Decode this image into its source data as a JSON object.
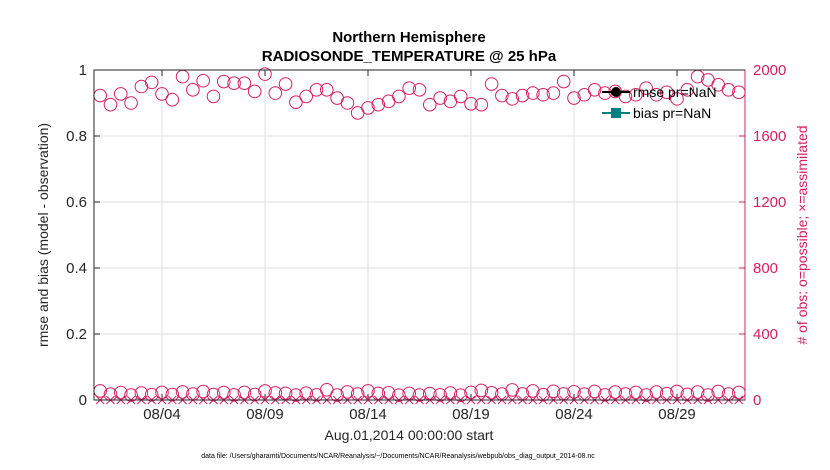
{
  "chart_data": {
    "type": "scatter",
    "title": "Northern Hemisphere",
    "subtitle": "RADIOSONDE_TEMPERATURE @ 25 hPa",
    "xlabel": "Aug.01,2014 00:00:00 start",
    "ylabel_left": "rmse and bias (model - observation)",
    "ylabel_right": "# of obs: o=possible; ×=assimilated",
    "x_ticks": [
      {
        "label": "08/04",
        "day": 4
      },
      {
        "label": "08/09",
        "day": 9
      },
      {
        "label": "08/14",
        "day": 14
      },
      {
        "label": "08/19",
        "day": 19
      },
      {
        "label": "08/24",
        "day": 24
      },
      {
        "label": "08/29",
        "day": 29
      }
    ],
    "xlim": [
      0.7,
      32.3
    ],
    "y_left": {
      "lim": [
        0,
        1
      ],
      "ticks": [
        "0",
        "0.2",
        "0.4",
        "0.6",
        "0.8",
        "1"
      ]
    },
    "y_right": {
      "lim": [
        0,
        2000
      ],
      "ticks": [
        "0",
        "400",
        "800",
        "1200",
        "1600",
        "2000"
      ]
    },
    "legend": [
      {
        "name": "rmse pr=NaN",
        "color": "#000000",
        "marker": "circle"
      },
      {
        "name": "bias pr=NaN",
        "color": "#00807f",
        "marker": "square"
      }
    ],
    "series": [
      {
        "name": "possible (high counts)",
        "marker": "o",
        "color": "#d62060",
        "x": [
          1.0,
          1.5,
          2.0,
          2.5,
          3.0,
          3.5,
          4.0,
          4.5,
          5.0,
          5.5,
          6.0,
          6.5,
          7.0,
          7.5,
          8.0,
          8.5,
          9.0,
          9.5,
          10.0,
          10.5,
          11.0,
          11.5,
          12.0,
          12.5,
          13.0,
          13.5,
          14.0,
          14.5,
          15.0,
          15.5,
          16.0,
          16.5,
          17.0,
          17.5,
          18.0,
          18.5,
          19.0,
          19.5,
          20.0,
          20.5,
          21.0,
          21.5,
          22.0,
          22.5,
          23.0,
          23.5,
          24.0,
          24.5,
          25.0,
          25.5,
          26.0,
          26.5,
          27.0,
          27.5,
          28.0,
          28.5,
          29.0,
          29.5,
          30.0,
          30.5,
          31.0,
          31.5,
          32.0
        ],
        "y": [
          1845,
          1790,
          1855,
          1800,
          1900,
          1925,
          1855,
          1820,
          1960,
          1880,
          1935,
          1840,
          1930,
          1920,
          1920,
          1870,
          1975,
          1860,
          1915,
          1805,
          1840,
          1880,
          1880,
          1830,
          1800,
          1740,
          1770,
          1790,
          1810,
          1840,
          1890,
          1880,
          1790,
          1830,
          1810,
          1840,
          1795,
          1790,
          1915,
          1845,
          1825,
          1845,
          1860,
          1850,
          1860,
          1930,
          1830,
          1850,
          1880,
          1860,
          1870,
          1840,
          1850,
          1890,
          1850,
          1865,
          1825,
          1880,
          1960,
          1940,
          1910,
          1880,
          1865
        ]
      },
      {
        "name": "possible (low counts)",
        "marker": "o",
        "color": "#d62060",
        "x": [
          1.0,
          1.5,
          2.0,
          2.5,
          3.0,
          3.5,
          4.0,
          4.5,
          5.0,
          5.5,
          6.0,
          6.5,
          7.0,
          7.5,
          8.0,
          8.5,
          9.0,
          9.5,
          10.0,
          10.5,
          11.0,
          11.5,
          12.0,
          12.5,
          13.0,
          13.5,
          14.0,
          14.5,
          15.0,
          15.5,
          16.0,
          16.5,
          17.0,
          17.5,
          18.0,
          18.5,
          19.0,
          19.5,
          20.0,
          20.5,
          21.0,
          21.5,
          22.0,
          22.5,
          23.0,
          23.5,
          24.0,
          24.5,
          25.0,
          25.5,
          26.0,
          26.5,
          27.0,
          27.5,
          28.0,
          28.5,
          29.0,
          29.5,
          30.0,
          30.5,
          31.0,
          31.5,
          32.0
        ],
        "y": [
          55,
          35,
          45,
          30,
          42,
          32,
          46,
          33,
          49,
          36,
          51,
          33,
          45,
          31,
          46,
          33,
          55,
          43,
          40,
          30,
          41,
          31,
          62,
          30,
          49,
          36,
          55,
          40,
          44,
          29,
          40,
          30,
          39,
          31,
          42,
          29,
          46,
          58,
          44,
          36,
          61,
          37,
          55,
          32,
          53,
          37,
          50,
          35,
          52,
          31,
          48,
          36,
          46,
          30,
          48,
          38,
          52,
          34,
          48,
          30,
          51,
          36,
          45
        ]
      },
      {
        "name": "assimilated",
        "marker": "x",
        "color": "#d62060",
        "x": [
          1.0,
          1.5,
          2.0,
          2.5,
          3.0,
          3.5,
          4.0,
          4.5,
          5.0,
          5.5,
          6.0,
          6.5,
          7.0,
          7.5,
          8.0,
          8.5,
          9.0,
          9.5,
          10.0,
          10.5,
          11.0,
          11.5,
          12.0,
          12.5,
          13.0,
          13.5,
          14.0,
          14.5,
          15.0,
          15.5,
          16.0,
          16.5,
          17.0,
          17.5,
          18.0,
          18.5,
          19.0,
          19.5,
          20.0,
          20.5,
          21.0,
          21.5,
          22.0,
          22.5,
          23.0,
          23.5,
          24.0,
          24.5,
          25.0,
          25.5,
          26.0,
          26.5,
          27.0,
          27.5,
          28.0,
          28.5,
          29.0,
          29.5,
          30.0,
          30.5,
          31.0,
          31.5,
          32.0
        ],
        "y": [
          0,
          0,
          0,
          0,
          0,
          0,
          0,
          0,
          0,
          0,
          0,
          0,
          0,
          0,
          0,
          0,
          0,
          0,
          0,
          0,
          0,
          0,
          0,
          0,
          0,
          0,
          0,
          0,
          0,
          0,
          0,
          0,
          0,
          0,
          0,
          0,
          0,
          0,
          0,
          0,
          0,
          0,
          0,
          0,
          0,
          0,
          0,
          0,
          0,
          0,
          0,
          0,
          0,
          0,
          0,
          0,
          0,
          0,
          0,
          0,
          0,
          0,
          0
        ]
      }
    ]
  },
  "footer": "data file: /Users/gharamti/Documents/NCAR/Reanalysis/~/Documents/NCAR/Reanalysis/webpub/obs_diag_output_2014-08.nc",
  "colors": {
    "axis_left": "#262626",
    "axis_right": "#d62060",
    "grid": "#dfdfdf"
  }
}
